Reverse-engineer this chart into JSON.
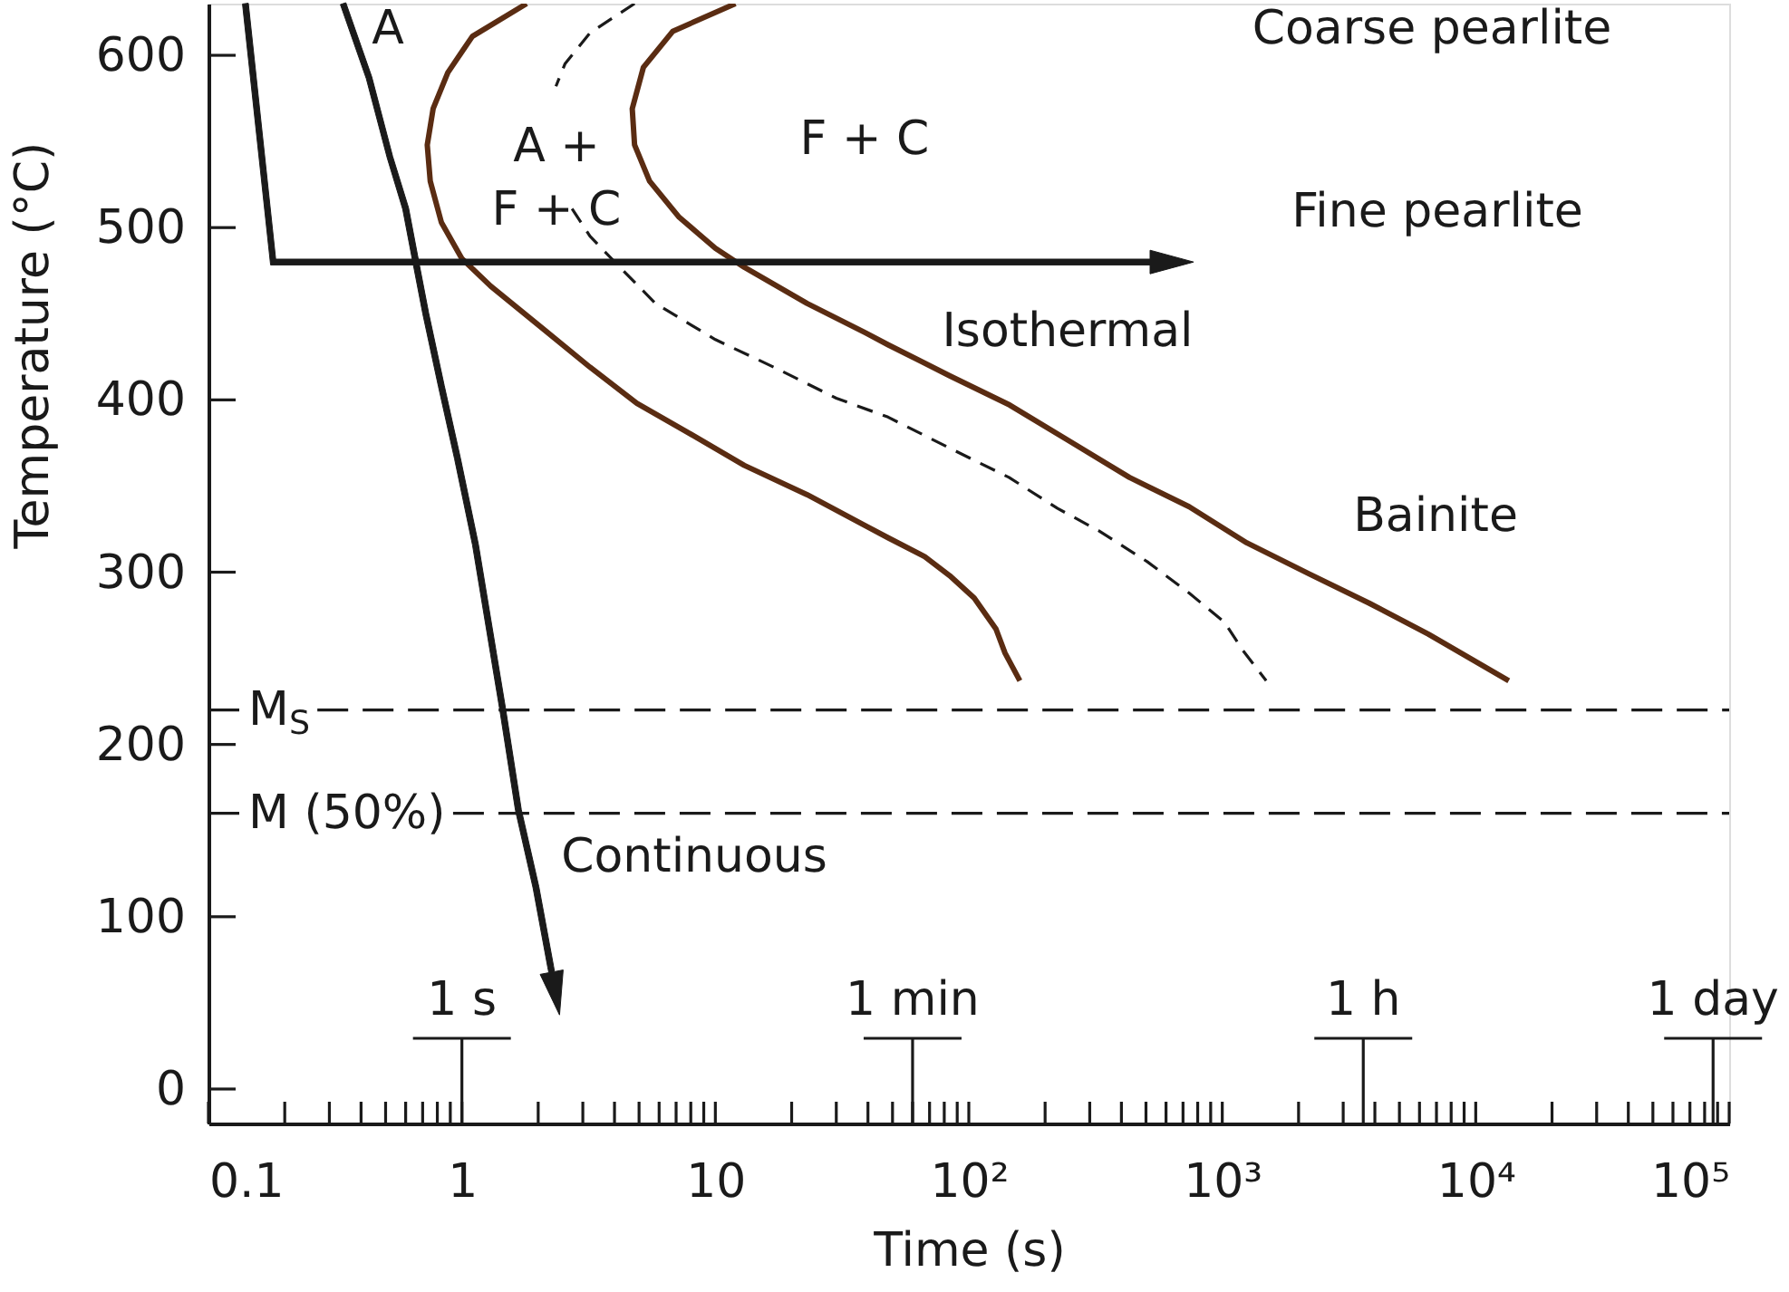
{
  "chart_data": {
    "type": "line",
    "xlabel": "Time (s)",
    "ylabel": "Temperature (°C)",
    "log": "x",
    "xlim": [
      0.1,
      100000
    ],
    "ylim": [
      -20,
      630
    ],
    "xticks": [
      0.1,
      {
        "value": 0.2,
        "label": null
      },
      {
        "value": 0.3,
        "label": null
      },
      {
        "value": 0.4,
        "label": null
      },
      {
        "value": 0.5,
        "label": null
      },
      {
        "value": 0.6,
        "label": null
      },
      {
        "value": 0.7,
        "label": null
      },
      {
        "value": 0.8,
        "label": null
      },
      {
        "value": 0.9,
        "label": null
      },
      1,
      {
        "value": 2,
        "label": null
      },
      {
        "value": 3,
        "label": null
      },
      {
        "value": 4,
        "label": null
      },
      {
        "value": 5,
        "label": null
      },
      {
        "value": 6,
        "label": null
      },
      {
        "value": 7,
        "label": null
      },
      {
        "value": 8,
        "label": null
      },
      {
        "value": 9,
        "label": null
      },
      10,
      {
        "value": 20,
        "label": null
      },
      {
        "value": 30,
        "label": null
      },
      {
        "value": 40,
        "label": null
      },
      {
        "value": 50,
        "label": null
      },
      {
        "value": 60,
        "label": null
      },
      {
        "value": 70,
        "label": null
      },
      {
        "value": 80,
        "label": null
      },
      {
        "value": 90,
        "label": null
      },
      {
        "value": 100,
        "label": "10²"
      },
      {
        "value": 200,
        "label": null
      },
      {
        "value": 300,
        "label": null
      },
      {
        "value": 400,
        "label": null
      },
      {
        "value": 500,
        "label": null
      },
      {
        "value": 600,
        "label": null
      },
      {
        "value": 700,
        "label": null
      },
      {
        "value": 800,
        "label": null
      },
      {
        "value": 900,
        "label": null
      },
      {
        "value": 1000,
        "label": "10³"
      },
      {
        "value": 2000,
        "label": null
      },
      {
        "value": 3000,
        "label": null
      },
      {
        "value": 4000,
        "label": null
      },
      {
        "value": 5000,
        "label": null
      },
      {
        "value": 6000,
        "label": null
      },
      {
        "value": 7000,
        "label": null
      },
      {
        "value": 8000,
        "label": null
      },
      {
        "value": 9000,
        "label": null
      },
      {
        "value": 10000,
        "label": "10⁴"
      },
      {
        "value": 20000,
        "label": null
      },
      {
        "value": 30000,
        "label": null
      },
      {
        "value": 40000,
        "label": null
      },
      {
        "value": 50000,
        "label": null
      },
      {
        "value": 60000,
        "label": null
      },
      {
        "value": 70000,
        "label": null
      },
      {
        "value": 80000,
        "label": null
      },
      {
        "value": 90000,
        "label": null
      },
      {
        "value": 100000,
        "label": "10⁵"
      }
    ],
    "yticks": [
      0,
      100,
      200,
      300,
      400,
      500,
      600
    ],
    "series": [
      {
        "color": "#5a2c12",
        "line_style": "solid",
        "x": [
          1.8,
          1.1,
          0.88,
          0.77,
          0.73,
          0.75,
          0.83,
          1.0,
          1.3,
          2.1,
          3.2,
          4.9,
          7.6,
          13,
          23,
          39,
          48,
          67,
          84,
          105,
          128,
          139,
          159
        ],
        "values": [
          630,
          611,
          590,
          569,
          548,
          527,
          503,
          482,
          466,
          441,
          419,
          398,
          382,
          362,
          345,
          327,
          320,
          309,
          298,
          285,
          267,
          253,
          237
        ]
      },
      {
        "color": "#1a1a1a",
        "line_style": "dashed",
        "x": [
          4.8,
          3.2,
          2.55,
          2.35,
          2.4,
          2.72,
          3.2,
          4.2,
          5.8,
          10,
          17,
          30,
          48,
          84,
          144,
          224,
          326,
          507,
          738,
          1020,
          1200,
          1490
        ],
        "values": [
          630,
          613,
          595,
          582,
          null,
          511,
          495,
          477,
          456,
          435,
          419,
          401,
          390,
          372,
          355,
          337,
          324,
          306,
          288,
          271,
          255,
          237
        ]
      },
      {
        "color": "#5a2c12",
        "line_style": "solid",
        "x": [
          12,
          6.8,
          5.2,
          4.7,
          4.8,
          5.5,
          7.2,
          10,
          13,
          23,
          39,
          48,
          84,
          145,
          250,
          430,
          740,
          1250,
          2200,
          3800,
          6500,
          13500
        ],
        "values": [
          630,
          614,
          593,
          569,
          548,
          527,
          506,
          488,
          477,
          456,
          439,
          432,
          414,
          397,
          376,
          355,
          338,
          317,
          299,
          282,
          264,
          237
        ]
      }
    ],
    "ref_lines": [
      {
        "axis": "y",
        "value": 220,
        "label": "M$_{S}$",
        "line_style": "dashed",
        "color": "#1a1a1a"
      },
      {
        "axis": "y",
        "value": 160,
        "label": "M (50%)",
        "line_style": "dashed",
        "color": "#1a1a1a"
      },
      {
        "axis": "x",
        "value": 1,
        "label": "1 s",
        "line_style": "solid",
        "color": "#1a1a1a"
      },
      {
        "axis": "x",
        "value": 60,
        "label": "1 min",
        "line_style": "solid",
        "color": "#1a1a1a"
      },
      {
        "axis": "x",
        "value": 3600,
        "label": "1 h",
        "line_style": "solid",
        "color": "#1a1a1a"
      },
      {
        "axis": "x",
        "value": 86400,
        "label": "1 day",
        "line_style": "solid",
        "color": "#1a1a1a"
      }
    ],
    "annotations": [
      "A",
      "A +\nF + C",
      "F + C",
      "Coarse pearlite",
      "Fine pearlite",
      "Isothermal",
      "Bainite",
      "Continuous"
    ]
  }
}
